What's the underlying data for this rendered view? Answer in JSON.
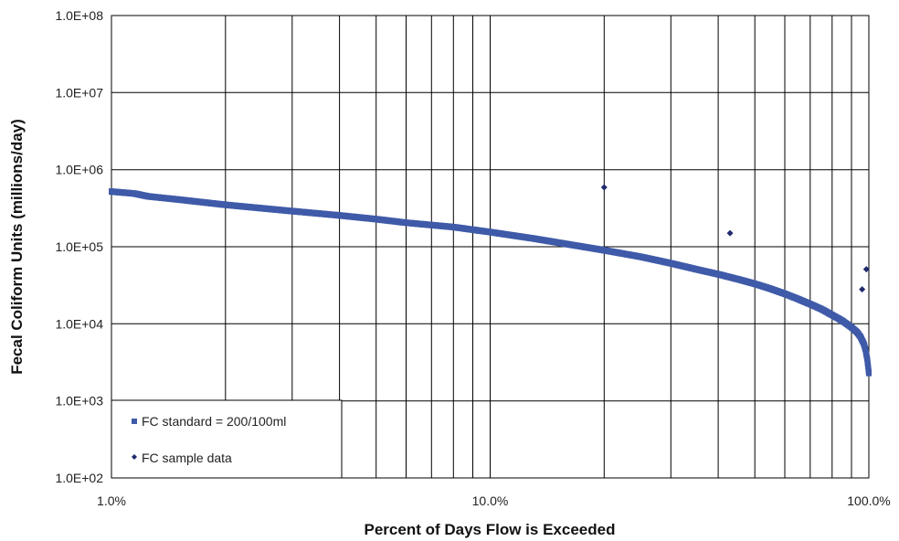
{
  "chart_data": {
    "type": "scatter",
    "x_scale": "log",
    "y_scale": "log",
    "xlim": [
      0.01,
      1.0
    ],
    "ylim": [
      100,
      100000000
    ],
    "grid": true,
    "xlabel": "Percent of Days Flow is Exceeded",
    "ylabel": "Fecal Coliform Units (millions/day)",
    "x_tick_labels": [
      "1.0%",
      "10.0%",
      "100.0%"
    ],
    "y_tick_labels": [
      "1.0E+02",
      "1.0E+03",
      "1.0E+04",
      "1.0E+05",
      "1.0E+06",
      "1.0E+07",
      "1.0E+08"
    ],
    "legend_position": "bottom-left",
    "series": [
      {
        "name": "FC standard = 200/100ml",
        "marker": "square",
        "color": "#3f5aa8",
        "points": [
          [
            0.01,
            520000
          ],
          [
            0.0115,
            490000
          ],
          [
            0.0125,
            450000
          ],
          [
            0.015,
            410000
          ],
          [
            0.02,
            350000
          ],
          [
            0.03,
            290000
          ],
          [
            0.04,
            255000
          ],
          [
            0.05,
            228000
          ],
          [
            0.06,
            205000
          ],
          [
            0.08,
            180000
          ],
          [
            0.1,
            155000
          ],
          [
            0.13,
            128000
          ],
          [
            0.16,
            108000
          ],
          [
            0.2,
            90000
          ],
          [
            0.25,
            74000
          ],
          [
            0.3,
            61000
          ],
          [
            0.35,
            51000
          ],
          [
            0.4,
            44000
          ],
          [
            0.45,
            38000
          ],
          [
            0.5,
            33000
          ],
          [
            0.55,
            28500
          ],
          [
            0.6,
            24500
          ],
          [
            0.65,
            21000
          ],
          [
            0.7,
            18000
          ],
          [
            0.75,
            15500
          ],
          [
            0.8,
            13000
          ],
          [
            0.85,
            11000
          ],
          [
            0.9,
            9000
          ],
          [
            0.93,
            7800
          ],
          [
            0.95,
            6800
          ],
          [
            0.97,
            5500
          ],
          [
            0.98,
            4600
          ],
          [
            0.99,
            3500
          ],
          [
            1.0,
            2300
          ]
        ]
      },
      {
        "name": "FC sample data",
        "marker": "diamond",
        "color": "#1f2a6e",
        "points": [
          [
            0.2,
            590000
          ],
          [
            0.43,
            150000
          ],
          [
            0.96,
            28000
          ],
          [
            0.985,
            51000
          ]
        ]
      }
    ]
  }
}
